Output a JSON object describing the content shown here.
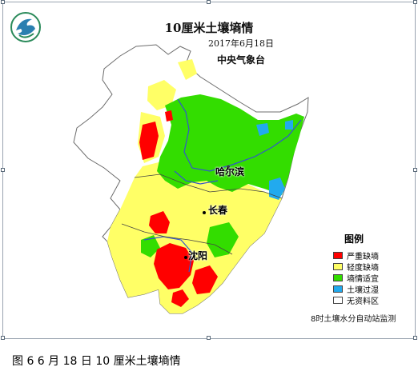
{
  "map": {
    "title": "10厘米土壤墒情",
    "date": "2017年6月18日",
    "issuer": "中央气象台",
    "cities": [
      {
        "name": "哈尔滨"
      },
      {
        "name": "长春"
      },
      {
        "name": "沈阳"
      }
    ],
    "legend": {
      "title": "图例",
      "items": [
        {
          "label": "严重缺墒",
          "color": "#ff0000"
        },
        {
          "label": "轻度缺墒",
          "color": "#ffff66"
        },
        {
          "label": "墒情适宜",
          "color": "#33dd00"
        },
        {
          "label": "土壤过湿",
          "color": "#22aaee"
        },
        {
          "label": "无资料区",
          "color": "#ffffff"
        }
      ]
    },
    "source_note": "8时土壤水分自动站监测",
    "colors": {
      "outline": "#6c6c6c",
      "river": "#3355cc",
      "province_border": "#444444"
    }
  },
  "caption": "图 6  6 月 18 日 10 厘米土壤墒情"
}
